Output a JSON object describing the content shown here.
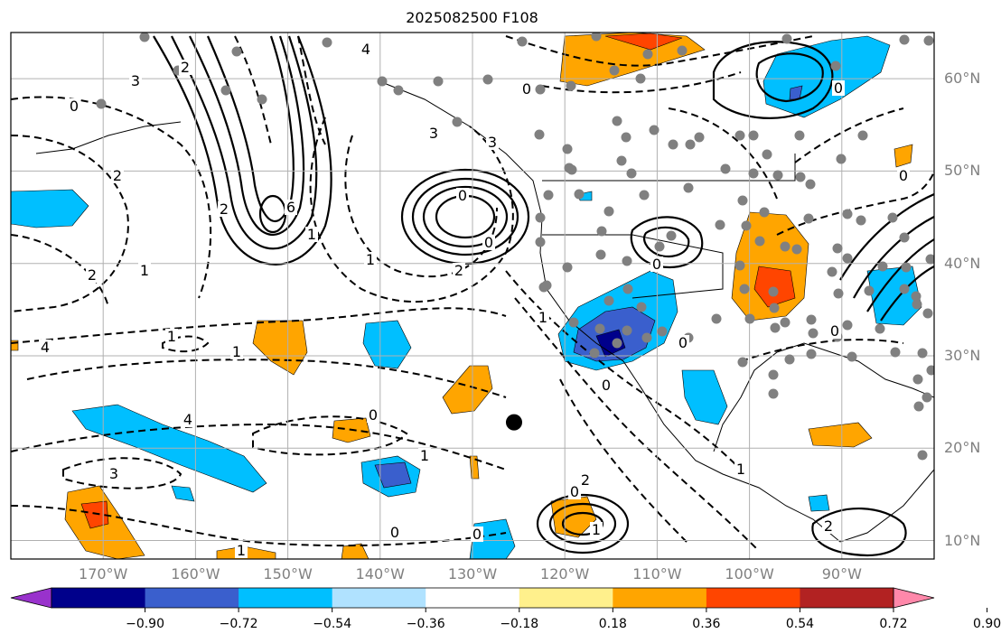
{
  "title": "2025082500 F108",
  "map": {
    "projection": "PlateCarree",
    "extent_lon": [
      -180,
      -80
    ],
    "extent_lat": [
      8,
      65
    ],
    "grid": true,
    "lat_ticks": [
      "60°N",
      "50°N",
      "40°N",
      "30°N",
      "20°N",
      "10°N"
    ],
    "lon_ticks": [
      "170°W",
      "160°W",
      "150°W",
      "140°W",
      "130°W",
      "120°W",
      "110°W",
      "100°W",
      "90°W"
    ],
    "contour_labels": [
      "0",
      "3",
      "2",
      "6",
      "2",
      "2",
      "2",
      "1",
      "4",
      "3",
      "0",
      "0",
      "2",
      "1",
      "4",
      "1",
      "0",
      "1",
      "0",
      "0",
      "1",
      "1",
      "0",
      "0",
      "0",
      "1",
      "2",
      "0",
      "1",
      "2",
      "0",
      "0",
      "0",
      "3",
      "3",
      "1",
      "4",
      "0",
      "1"
    ],
    "marker": {
      "lon": -125.5,
      "lat": 22.8,
      "color": "#000000"
    },
    "station_dot_color": "#808080"
  },
  "colorbar": {
    "colors": [
      "#9932cc",
      "#00008b",
      "#3a5fcd",
      "#00bfff",
      "#b0e2ff",
      "#ffffff",
      "#fff08c",
      "#ffa500",
      "#ff4500",
      "#b22222",
      "#ff88aa"
    ],
    "tick_labels": [
      "−0.90",
      "−0.72",
      "−0.54",
      "−0.36",
      "−0.18",
      "0.18",
      "0.36",
      "0.54",
      "0.72",
      "0.90"
    ],
    "extend": "both"
  }
}
